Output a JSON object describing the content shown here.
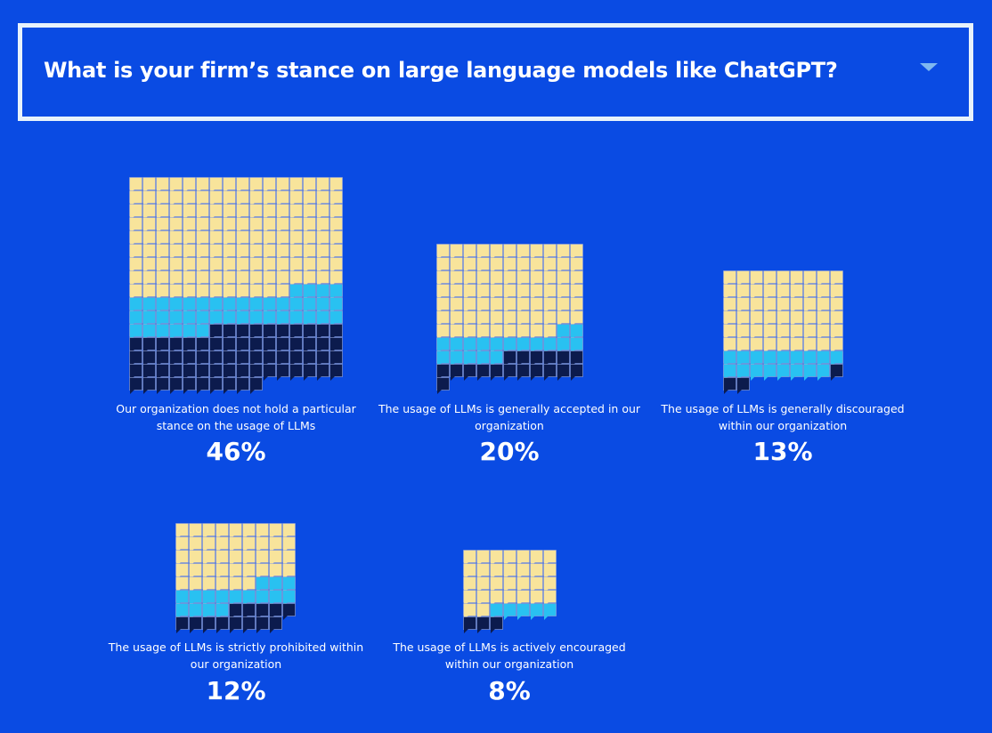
{
  "question": {
    "title": "What is your firm’s stance on large language models like ChatGPT?"
  },
  "colors": {
    "background": "#0a4be3",
    "unit_yellow": "#f8e49b",
    "unit_cyan": "#29c1f1",
    "unit_navy": "#0c1b4d",
    "cell_line": "#9aa7d6"
  },
  "chart_data": {
    "type": "waffle",
    "title": "What is your firm’s stance on large language models like ChatGPT?",
    "unit_legend": [],
    "items": [
      {
        "label": "Our organization does not hold a particular stance on the usage of LLMs",
        "percent_label": "46%",
        "value": 46,
        "cols": 16,
        "rows": 16,
        "yellow": 140,
        "cyan": 42,
        "navy": 68
      },
      {
        "label": "The usage of LLMs is generally accepted in our organization",
        "percent_label": "20%",
        "value": 20,
        "cols": 11,
        "rows": 11,
        "yellow": 75,
        "cyan": 18,
        "navy": 18
      },
      {
        "label": "The usage of LLMs is generally discouraged within our organization",
        "percent_label": "13%",
        "value": 13,
        "cols": 9,
        "rows": 9,
        "yellow": 54,
        "cyan": 17,
        "navy": 3
      },
      {
        "label": "The usage of LLMs is strictly prohibited within our organization",
        "percent_label": "12%",
        "value": 12,
        "cols": 9,
        "rows": 8,
        "yellow": 42,
        "cyan": 16,
        "navy": 13
      },
      {
        "label": "The usage of LLMs is actively encouraged within our organization",
        "percent_label": "8%",
        "value": 8,
        "cols": 7,
        "rows": 6,
        "yellow": 30,
        "cyan": 5,
        "navy": 3
      }
    ]
  }
}
